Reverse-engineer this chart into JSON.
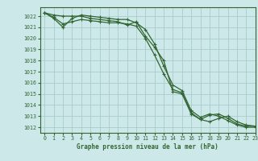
{
  "title": "Graphe pression niveau de la mer (hPa)",
  "bg_color": "#cce8e8",
  "grid_color": "#aacccc",
  "line_color": "#336633",
  "xlim": [
    -0.5,
    23
  ],
  "ylim": [
    1011.5,
    1022.8
  ],
  "yticks": [
    1012,
    1013,
    1014,
    1015,
    1016,
    1017,
    1018,
    1019,
    1020,
    1021,
    1022
  ],
  "xticks": [
    0,
    1,
    2,
    3,
    4,
    5,
    6,
    7,
    8,
    9,
    10,
    11,
    12,
    13,
    14,
    15,
    16,
    17,
    18,
    19,
    20,
    21,
    22,
    23
  ],
  "series": [
    [
      1022.3,
      1022.1,
      1022.0,
      1022.0,
      1022.0,
      1021.8,
      1021.7,
      1021.6,
      1021.5,
      1021.2,
      1021.5,
      1020.2,
      1019.2,
      1018.0,
      1015.2,
      1015.0,
      1013.2,
      1012.7,
      1012.5,
      1012.8,
      1013.0,
      1012.5,
      1012.2,
      1012.1
    ],
    [
      1022.3,
      1021.9,
      1021.3,
      1021.5,
      1021.7,
      1021.6,
      1021.5,
      1021.4,
      1021.4,
      1021.3,
      1021.1,
      1020.0,
      1018.5,
      1016.8,
      1015.4,
      1015.1,
      1013.3,
      1012.7,
      1013.1,
      1013.2,
      1012.8,
      1012.3,
      1012.1,
      1012.1
    ],
    [
      1022.3,
      1021.8,
      1021.0,
      1021.8,
      1022.1,
      1022.0,
      1021.9,
      1021.8,
      1021.7,
      1021.7,
      1021.4,
      1020.8,
      1019.5,
      1017.5,
      1015.8,
      1015.3,
      1013.5,
      1012.9,
      1013.2,
      1013.0,
      1012.6,
      1012.2,
      1012.0,
      1012.0
    ]
  ],
  "ylabel_fontsize": 5,
  "xlabel_fontsize": 5.5,
  "tick_fontsize": 4.8,
  "linewidth": 0.9,
  "markersize": 2.5
}
